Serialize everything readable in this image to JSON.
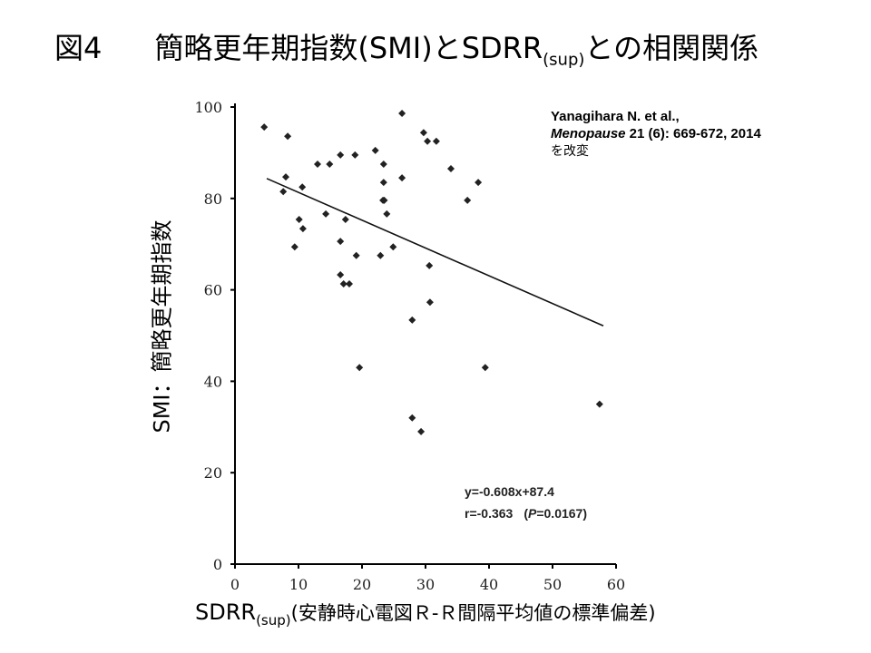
{
  "title": {
    "figure": "図4",
    "main": "簡略更年期指数(SMI)とSDRR",
    "sub": "(sup)",
    "rest": "との相関関係"
  },
  "citation": {
    "authors": "Yanagihara N. et al.,",
    "journal": "Menopause",
    "details": " 21 (6): 669-672, 2014",
    "note": "を改変"
  },
  "chart_data": {
    "type": "scatter",
    "title": "図4 簡略更年期指数(SMI)とSDRR(sup)との相関関係",
    "xlabel": "SDRR(sup)(安静時心電図R-R間隔平均値の標準偏差)",
    "ylabel": "SMI：簡略更年期指数",
    "xlim": [
      0,
      60
    ],
    "ylim": [
      0,
      100
    ],
    "xticks": [
      "0",
      "10",
      "20",
      "30",
      "40",
      "50",
      "60"
    ],
    "yticks": [
      "0",
      "20",
      "40",
      "60",
      "80",
      "100"
    ],
    "grid": false,
    "points": [
      [
        4.6,
        95.6
      ],
      [
        8.0,
        84.7
      ],
      [
        7.6,
        81.5
      ],
      [
        8.3,
        93.6
      ],
      [
        10.6,
        82.5
      ],
      [
        10.1,
        75.4
      ],
      [
        10.7,
        73.4
      ],
      [
        9.4,
        69.4
      ],
      [
        13.0,
        87.5
      ],
      [
        14.9,
        87.5
      ],
      [
        16.6,
        89.5
      ],
      [
        18.9,
        89.5
      ],
      [
        14.3,
        76.6
      ],
      [
        17.4,
        75.4
      ],
      [
        16.6,
        70.6
      ],
      [
        19.1,
        67.5
      ],
      [
        16.6,
        63.3
      ],
      [
        17.1,
        61.3
      ],
      [
        18.0,
        61.3
      ],
      [
        19.6,
        43.0
      ],
      [
        22.1,
        90.5
      ],
      [
        23.4,
        87.5
      ],
      [
        23.4,
        83.5
      ],
      [
        23.3,
        79.6
      ],
      [
        23.5,
        79.6
      ],
      [
        23.9,
        76.6
      ],
      [
        22.9,
        67.5
      ],
      [
        24.9,
        69.4
      ],
      [
        26.3,
        98.6
      ],
      [
        26.3,
        84.5
      ],
      [
        27.9,
        53.4
      ],
      [
        27.9,
        32.0
      ],
      [
        29.3,
        29.0
      ],
      [
        29.7,
        94.4
      ],
      [
        30.3,
        92.5
      ],
      [
        31.7,
        92.5
      ],
      [
        34.0,
        86.5
      ],
      [
        30.6,
        65.3
      ],
      [
        30.7,
        57.3
      ],
      [
        36.6,
        79.6
      ],
      [
        38.3,
        83.5
      ],
      [
        39.4,
        43.0
      ],
      [
        57.4,
        35.0
      ]
    ],
    "trendline": {
      "slope": -0.608,
      "intercept": 87.4,
      "x_range": [
        5,
        58
      ]
    },
    "annotations": {
      "equation": "y=-0.608x+87.4",
      "r": "r=-0.363",
      "p_label": "P",
      "p_value": "=0.0167"
    }
  }
}
